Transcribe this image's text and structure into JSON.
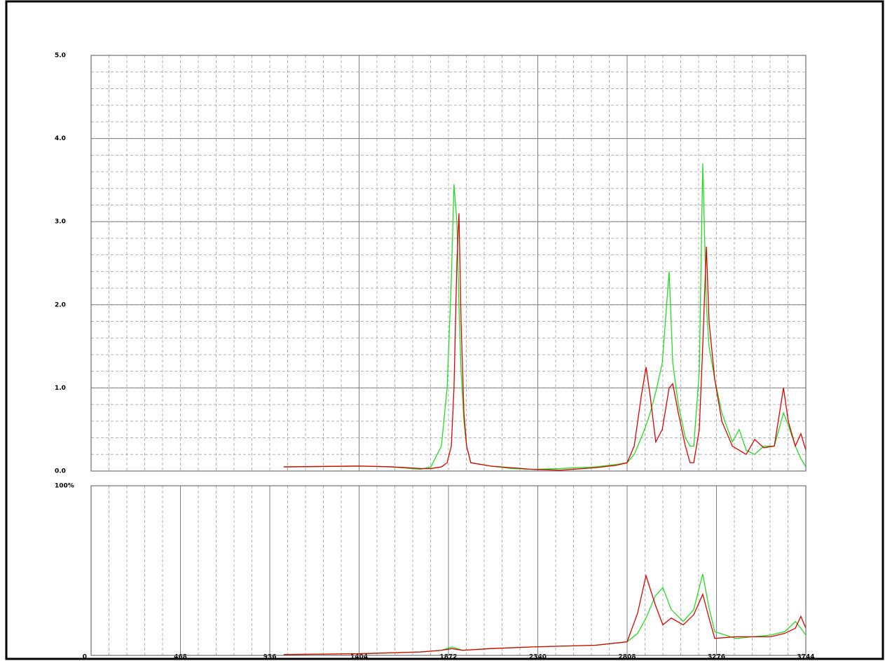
{
  "chart_data": [
    {
      "type": "line",
      "xlim": [
        0,
        3744
      ],
      "ylim": [
        0,
        5
      ],
      "yticks": [
        {
          "value": 0,
          "label": "0.0"
        },
        {
          "value": 1,
          "label": "1.0"
        },
        {
          "value": 2,
          "label": "2.0"
        },
        {
          "value": 3,
          "label": "3.0"
        },
        {
          "value": 4,
          "label": "4.0"
        },
        {
          "value": 5,
          "label": "5.0"
        }
      ],
      "grid_y": true,
      "xgrid": [
        1404,
        2340,
        2808
      ],
      "x_divisions": 40,
      "y_divisions": 25,
      "x": [
        1009,
        1413,
        1578,
        1725,
        1780,
        1835,
        1865,
        1887,
        1901,
        1916,
        1927,
        1938,
        1953,
        1967,
        1989,
        2092,
        2202,
        2312,
        2459,
        2643,
        2753,
        2808,
        2845,
        2882,
        2907,
        2929,
        2958,
        2992,
        3028,
        3047,
        3076,
        3113,
        3138,
        3157,
        3186,
        3204,
        3223,
        3237,
        3267,
        3304,
        3359,
        3395,
        3432,
        3476,
        3524,
        3579,
        3627,
        3652,
        3689,
        3718,
        3744
      ],
      "series": [
        {
          "color": "#22dd22",
          "values": [
            0.05,
            0.06,
            0.05,
            0.02,
            0.05,
            0.3,
            1.0,
            2.3,
            3.45,
            3.0,
            2.0,
            1.2,
            0.6,
            0.3,
            0.1,
            0.06,
            0.03,
            0.02,
            0.03,
            0.05,
            0.08,
            0.1,
            0.2,
            0.4,
            0.55,
            0.7,
            0.95,
            1.3,
            2.4,
            1.3,
            0.8,
            0.4,
            0.3,
            0.3,
            1.2,
            3.7,
            2.0,
            1.5,
            1.1,
            0.7,
            0.35,
            0.5,
            0.25,
            0.2,
            0.3,
            0.3,
            0.7,
            0.55,
            0.3,
            0.15,
            0.05
          ]
        },
        {
          "color": "#dd0000",
          "values": [
            0.05,
            0.06,
            0.05,
            0.03,
            0.03,
            0.05,
            0.1,
            0.3,
            1.0,
            2.5,
            3.1,
            1.8,
            0.7,
            0.3,
            0.1,
            0.06,
            0.04,
            0.02,
            0.01,
            0.04,
            0.07,
            0.1,
            0.3,
            0.9,
            1.25,
            0.9,
            0.35,
            0.5,
            1.0,
            1.05,
            0.7,
            0.3,
            0.1,
            0.1,
            0.5,
            1.5,
            2.7,
            1.8,
            1.1,
            0.6,
            0.3,
            0.25,
            0.2,
            0.38,
            0.28,
            0.3,
            1.0,
            0.6,
            0.3,
            0.45,
            0.25
          ]
        }
      ]
    },
    {
      "type": "line",
      "xlim": [
        0,
        3744
      ],
      "ylim": [
        0,
        100
      ],
      "yticks": [
        {
          "value": 100,
          "label": "100%"
        }
      ],
      "xticks": [
        0,
        468,
        936,
        1404,
        1872,
        2340,
        2808,
        3276,
        3744
      ],
      "grid_y": false,
      "xgrid": [
        468,
        936,
        1404,
        1872,
        2340,
        2808,
        3276
      ],
      "x_divisions": 40,
      "x": [
        1009,
        1413,
        1725,
        1835,
        1890,
        1945,
        2092,
        2312,
        2643,
        2808,
        2863,
        2907,
        2955,
        2995,
        3039,
        3102,
        3157,
        3204,
        3237,
        3267,
        3377,
        3560,
        3634,
        3689,
        3718,
        3744
      ],
      "series": [
        {
          "color": "#22dd22",
          "values": [
            0.5,
            1,
            2,
            3,
            5,
            3,
            4,
            5,
            6,
            8,
            13,
            22,
            35,
            40,
            27,
            20,
            27,
            48,
            28,
            14,
            10,
            12,
            14,
            20,
            16,
            12
          ]
        },
        {
          "color": "#dd0000",
          "values": [
            0.5,
            1,
            2,
            3,
            4,
            3,
            4,
            5,
            6,
            8,
            25,
            47,
            30,
            18,
            22,
            18,
            24,
            36,
            22,
            10,
            11,
            11,
            13,
            16,
            23,
            16
          ]
        }
      ]
    }
  ]
}
